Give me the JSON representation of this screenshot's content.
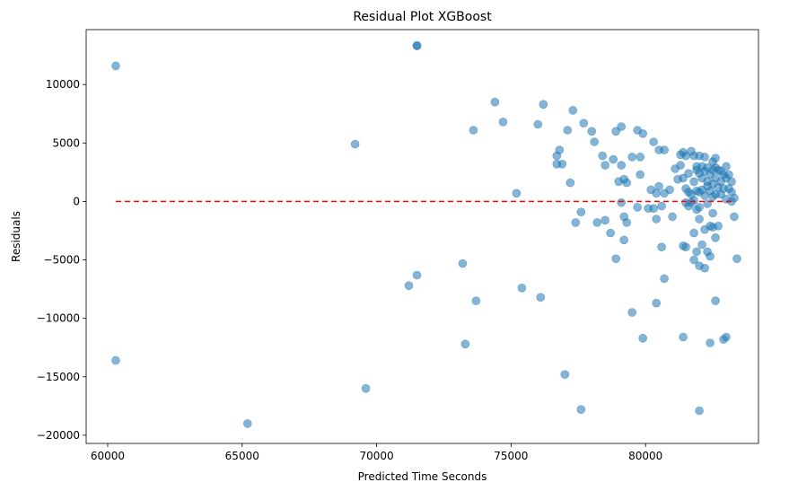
{
  "chart_data": {
    "type": "scatter",
    "title": "Residual Plot XGBoost",
    "xlabel": "Predicted Time Seconds",
    "ylabel": "Residuals",
    "xlim": [
      59200,
      84200
    ],
    "ylim": [
      -20700,
      14700
    ],
    "xticks": [
      60000,
      65000,
      70000,
      75000,
      80000
    ],
    "yticks": [
      -20000,
      -15000,
      -10000,
      -5000,
      0,
      5000,
      10000
    ],
    "grid": false,
    "point_color": "#1f77b4",
    "point_alpha": 0.55,
    "reference_line": {
      "y": 0,
      "x_range": [
        60300,
        83200
      ],
      "color": "#ff0000",
      "style": "dashed"
    },
    "points": [
      [
        60300,
        11600
      ],
      [
        60300,
        -13600
      ],
      [
        65200,
        -19000
      ],
      [
        69200,
        4900
      ],
      [
        69600,
        -16000
      ],
      [
        71200,
        -7200
      ],
      [
        71500,
        -6300
      ],
      [
        71500,
        13300
      ],
      [
        71500,
        13350
      ],
      [
        73200,
        -5300
      ],
      [
        73300,
        -12200
      ],
      [
        73600,
        6100
      ],
      [
        73700,
        -8500
      ],
      [
        74400,
        8500
      ],
      [
        74700,
        6800
      ],
      [
        75200,
        700
      ],
      [
        75400,
        -7400
      ],
      [
        76000,
        6600
      ],
      [
        76100,
        -8200
      ],
      [
        76200,
        8300
      ],
      [
        76700,
        3900
      ],
      [
        76700,
        3200
      ],
      [
        76800,
        4400
      ],
      [
        76900,
        3200
      ],
      [
        77000,
        -14800
      ],
      [
        77100,
        6100
      ],
      [
        77200,
        1600
      ],
      [
        77300,
        7800
      ],
      [
        77400,
        -1800
      ],
      [
        77600,
        -900
      ],
      [
        77600,
        -17800
      ],
      [
        77700,
        6700
      ],
      [
        78000,
        6000
      ],
      [
        78100,
        5100
      ],
      [
        78200,
        -1800
      ],
      [
        78400,
        3900
      ],
      [
        78500,
        3100
      ],
      [
        78500,
        -1600
      ],
      [
        78700,
        -2700
      ],
      [
        78800,
        3600
      ],
      [
        78900,
        6000
      ],
      [
        78900,
        -4900
      ],
      [
        79000,
        1700
      ],
      [
        79100,
        6400
      ],
      [
        79100,
        3100
      ],
      [
        79100,
        -100
      ],
      [
        79200,
        -1300
      ],
      [
        79200,
        1900
      ],
      [
        79200,
        -3300
      ],
      [
        79300,
        -1800
      ],
      [
        79300,
        1600
      ],
      [
        79500,
        3800
      ],
      [
        79500,
        -9500
      ],
      [
        79700,
        6100
      ],
      [
        79700,
        -500
      ],
      [
        79800,
        3800
      ],
      [
        79800,
        2300
      ],
      [
        79900,
        -11700
      ],
      [
        79900,
        5800
      ],
      [
        80100,
        -600
      ],
      [
        80200,
        1000
      ],
      [
        80300,
        5100
      ],
      [
        80300,
        -600
      ],
      [
        80400,
        -8700
      ],
      [
        80400,
        700
      ],
      [
        80400,
        -1500
      ],
      [
        80500,
        4400
      ],
      [
        80500,
        1300
      ],
      [
        80600,
        -400
      ],
      [
        80600,
        -3900
      ],
      [
        80700,
        4400
      ],
      [
        80700,
        700
      ],
      [
        80700,
        -6600
      ],
      [
        80900,
        1000
      ],
      [
        81000,
        -1300
      ],
      [
        81100,
        2800
      ],
      [
        81200,
        1900
      ],
      [
        81300,
        3100
      ],
      [
        81300,
        4000
      ],
      [
        81400,
        4200
      ],
      [
        81400,
        -3800
      ],
      [
        81400,
        -11600
      ],
      [
        81400,
        2000
      ],
      [
        81500,
        -3900
      ],
      [
        81500,
        3900
      ],
      [
        81500,
        1100
      ],
      [
        81600,
        2400
      ],
      [
        81600,
        800
      ],
      [
        81600,
        -400
      ],
      [
        81700,
        4300
      ],
      [
        81700,
        600
      ],
      [
        81700,
        -100
      ],
      [
        81800,
        3900
      ],
      [
        81800,
        1700
      ],
      [
        81800,
        100
      ],
      [
        81800,
        -5000
      ],
      [
        81800,
        -2700
      ],
      [
        81900,
        3000
      ],
      [
        81900,
        900
      ],
      [
        81900,
        -700
      ],
      [
        81900,
        -4300
      ],
      [
        82000,
        3900
      ],
      [
        82000,
        2400
      ],
      [
        82000,
        800
      ],
      [
        82000,
        -500
      ],
      [
        82000,
        -1500
      ],
      [
        82000,
        -5500
      ],
      [
        82000,
        -17900
      ],
      [
        82100,
        3000
      ],
      [
        82100,
        2000
      ],
      [
        82100,
        1000
      ],
      [
        82100,
        -3700
      ],
      [
        82200,
        3800
      ],
      [
        82200,
        2600
      ],
      [
        82200,
        500
      ],
      [
        82200,
        -2400
      ],
      [
        82200,
        -5700
      ],
      [
        82300,
        2900
      ],
      [
        82300,
        1700
      ],
      [
        82300,
        -200
      ],
      [
        82300,
        -4300
      ],
      [
        82400,
        2300
      ],
      [
        82400,
        900
      ],
      [
        82400,
        -12100
      ],
      [
        82400,
        -2100
      ],
      [
        82400,
        -4700
      ],
      [
        82500,
        3400
      ],
      [
        82500,
        1500
      ],
      [
        82500,
        400
      ],
      [
        82500,
        -1000
      ],
      [
        82500,
        -2200
      ],
      [
        82600,
        3700
      ],
      [
        82600,
        2900
      ],
      [
        82600,
        2000
      ],
      [
        82600,
        600
      ],
      [
        82600,
        -3100
      ],
      [
        82600,
        -8500
      ],
      [
        82700,
        2700
      ],
      [
        82700,
        1200
      ],
      [
        82700,
        -2100
      ],
      [
        82800,
        2600
      ],
      [
        82800,
        1700
      ],
      [
        82800,
        600
      ],
      [
        82900,
        2300
      ],
      [
        82900,
        1100
      ],
      [
        82900,
        -11800
      ],
      [
        83000,
        3000
      ],
      [
        83000,
        2000
      ],
      [
        83000,
        200
      ],
      [
        83000,
        -11600
      ],
      [
        83100,
        2300
      ],
      [
        83100,
        1100
      ],
      [
        83200,
        1700
      ],
      [
        83200,
        800
      ],
      [
        83200,
        0
      ],
      [
        83300,
        -1300
      ],
      [
        83300,
        300
      ],
      [
        83400,
        -4900
      ],
      [
        82500,
        2700
      ],
      [
        82300,
        1300
      ],
      [
        81900,
        2700
      ],
      [
        81500,
        -100
      ]
    ]
  }
}
